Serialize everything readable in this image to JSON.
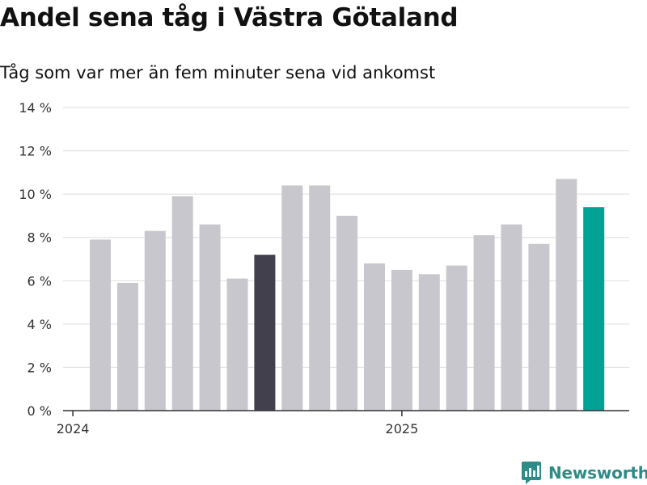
{
  "title": "Andel sena tåg i Västra Götaland",
  "subtitle": "Tåg som var mer än fem minuter sena vid ankomst",
  "brand": "Newsworthy",
  "colors": {
    "bar_default": "#c8c7cd",
    "bar_highlight_dark": "#42404d",
    "bar_highlight_latest": "#00a396",
    "grid": "#dddddd",
    "axis": "#333333",
    "brand": "#2e8c86"
  },
  "chart_data": {
    "type": "bar",
    "title": "Andel sena tåg i Västra Götaland",
    "subtitle": "Tåg som var mer än fem minuter sena vid ankomst",
    "xlabel": "",
    "ylabel": "",
    "x_tick_labels": [
      "2024",
      "2025"
    ],
    "x_tick_indices": [
      0,
      12
    ],
    "y_ticks": [
      0,
      2,
      4,
      6,
      8,
      10,
      12,
      14
    ],
    "y_tick_labels": [
      "0 %",
      "2 %",
      "4 %",
      "6 %",
      "8 %",
      "10 %",
      "12 %",
      "14 %"
    ],
    "ylim": [
      0,
      14
    ],
    "grid": true,
    "values": [
      7.9,
      5.9,
      8.3,
      9.9,
      8.6,
      6.1,
      7.2,
      10.4,
      10.4,
      9.0,
      6.8,
      6.5,
      6.3,
      6.7,
      8.1,
      8.6,
      7.7,
      10.7,
      9.4
    ],
    "highlights": [
      {
        "index": 6,
        "color": "#42404d"
      },
      {
        "index": 18,
        "color": "#00a396"
      }
    ]
  }
}
